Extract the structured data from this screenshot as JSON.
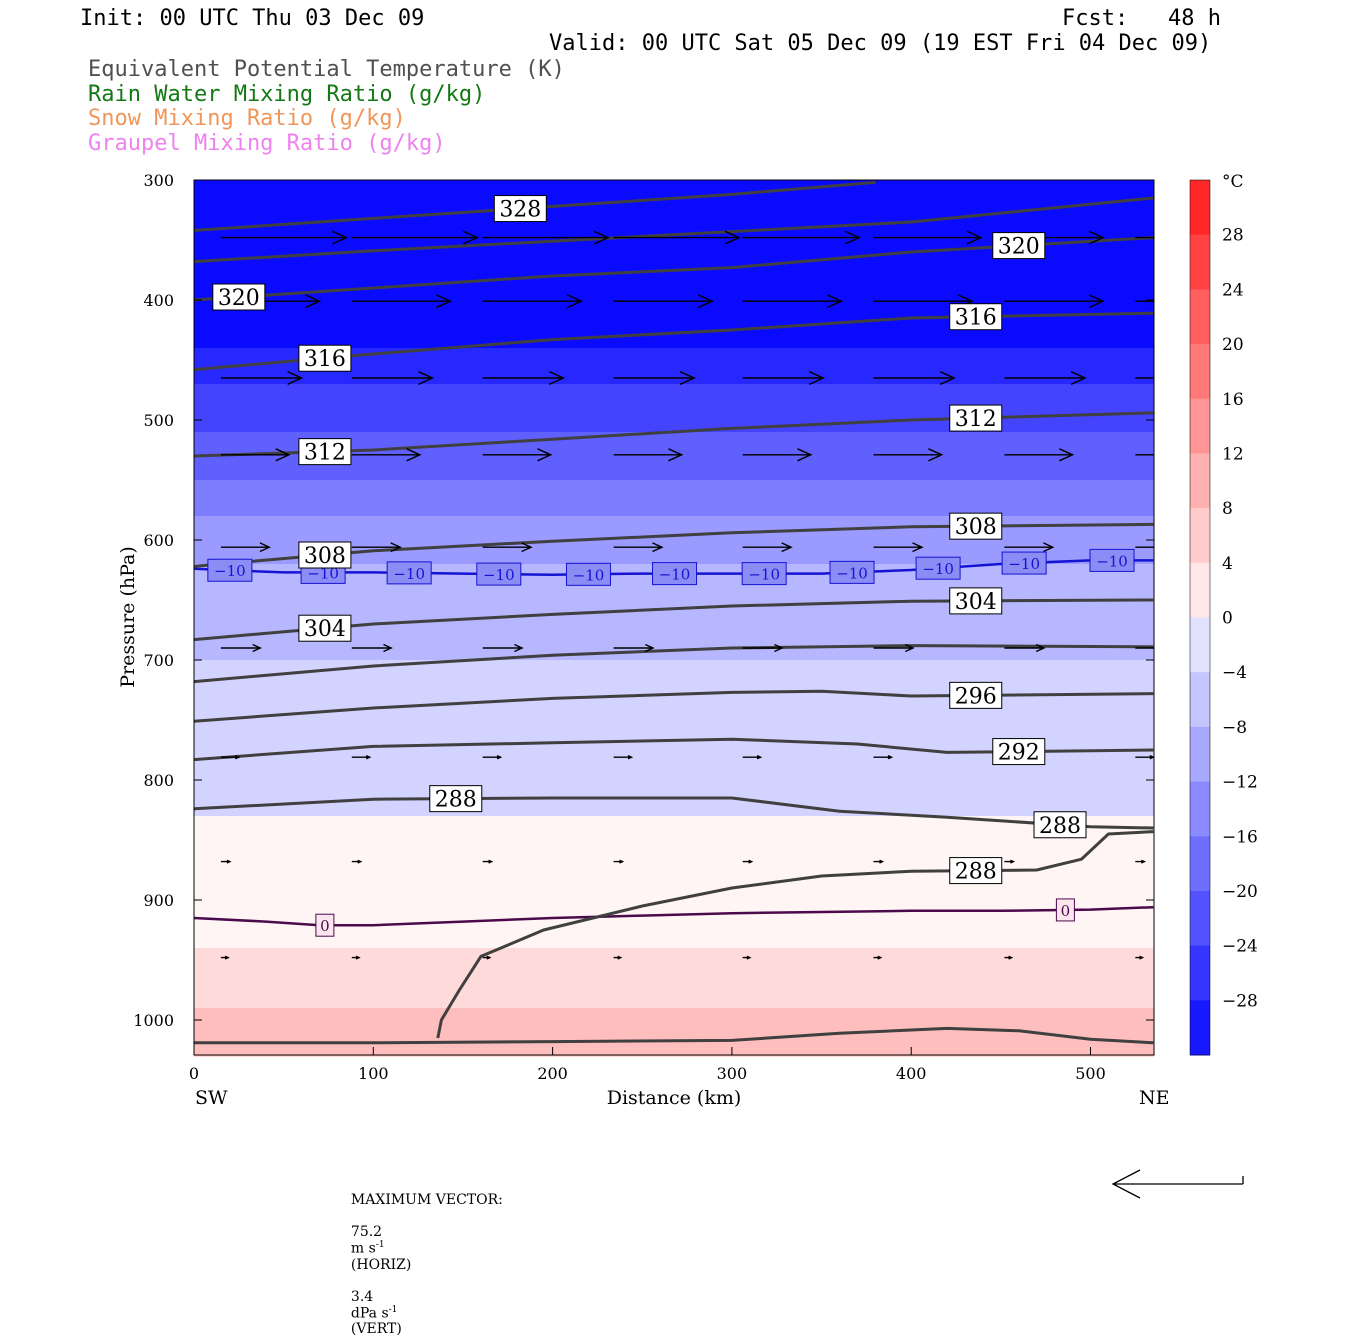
{
  "header": {
    "init": "Init: 00 UTC Thu 03 Dec 09",
    "fcst": "Fcst:   48 h",
    "valid": "Valid: 00 UTC Sat 05 Dec 09 (19 EST Fri 04 Dec 09)"
  },
  "legend": [
    {
      "text": "Equivalent Potential Temperature (K)",
      "color": "#505050"
    },
    {
      "text": "Rain Water Mixing Ratio (g/kg)",
      "color": "#147814"
    },
    {
      "text": "Snow Mixing Ratio (g/kg)",
      "color": "#f0965a"
    },
    {
      "text": "Graupel Mixing Ratio (g/kg)",
      "color": "#ee82ee"
    }
  ],
  "chart_data": {
    "type": "cross-section",
    "xlabel": "Distance (km)",
    "ylabel": "Pressure (hPa)",
    "x_ticks": [
      0,
      100,
      200,
      300,
      400,
      500
    ],
    "xlim": [
      0,
      535
    ],
    "y_ticks": [
      300,
      400,
      500,
      600,
      700,
      800,
      900,
      1000
    ],
    "ylim": [
      300,
      1030
    ],
    "x_end_labels": {
      "left": "SW",
      "right": "NE"
    },
    "colorbar": {
      "unit": "°C",
      "tick_labels": [
        "28",
        "24",
        "20",
        "16",
        "12",
        "8",
        "4",
        "0",
        "−4",
        "−8",
        "−12",
        "−16",
        "−20",
        "−24",
        "−28"
      ],
      "tick_values": [
        28,
        24,
        20,
        16,
        12,
        8,
        4,
        0,
        -4,
        -8,
        -12,
        -16,
        -20,
        -24,
        -28
      ],
      "range": [
        -32,
        32
      ]
    },
    "temperature_isotherms": [
      {
        "value": -10,
        "label": "−10",
        "points": [
          [
            0,
            624
          ],
          [
            50,
            627
          ],
          [
            100,
            627
          ],
          [
            150,
            628
          ],
          [
            200,
            629
          ],
          [
            250,
            628
          ],
          [
            300,
            628
          ],
          [
            350,
            628
          ],
          [
            400,
            625
          ],
          [
            450,
            620
          ],
          [
            500,
            617
          ],
          [
            535,
            617
          ]
        ],
        "label_x": [
          20,
          72,
          120,
          170,
          220,
          268,
          318,
          367,
          415,
          463,
          512
        ]
      },
      {
        "value": 0,
        "label": "0",
        "points": [
          [
            0,
            915
          ],
          [
            40,
            918
          ],
          [
            70,
            921
          ],
          [
            100,
            921
          ],
          [
            150,
            918
          ],
          [
            200,
            915
          ],
          [
            250,
            913
          ],
          [
            300,
            911
          ],
          [
            350,
            910
          ],
          [
            400,
            909
          ],
          [
            450,
            909
          ],
          [
            500,
            908
          ],
          [
            535,
            906
          ]
        ],
        "label_x": [
          73,
          486
        ]
      }
    ],
    "theta_e_contours": [
      {
        "value": 328,
        "points": [
          [
            0,
            342
          ],
          [
            100,
            332
          ],
          [
            200,
            322
          ],
          [
            300,
            312
          ],
          [
            380,
            302
          ]
        ],
        "labels": [
          {
            "x": 182,
            "text": "328"
          }
        ]
      },
      {
        "value": 324,
        "points": [
          [
            0,
            368
          ],
          [
            100,
            359
          ],
          [
            200,
            351
          ],
          [
            300,
            343
          ],
          [
            400,
            335
          ],
          [
            535,
            315
          ]
        ],
        "labels": []
      },
      {
        "value": 320,
        "points": [
          [
            0,
            400
          ],
          [
            100,
            390
          ],
          [
            200,
            380
          ],
          [
            300,
            373
          ],
          [
            400,
            360
          ],
          [
            535,
            348
          ]
        ],
        "labels": [
          {
            "x": 25,
            "text": "320"
          },
          {
            "x": 460,
            "text": "320"
          }
        ]
      },
      {
        "value": 316,
        "points": [
          [
            0,
            458
          ],
          [
            100,
            445
          ],
          [
            200,
            433
          ],
          [
            300,
            425
          ],
          [
            400,
            415
          ],
          [
            535,
            411
          ]
        ],
        "labels": [
          {
            "x": 73,
            "text": "316"
          },
          {
            "x": 436,
            "text": "316"
          }
        ]
      },
      {
        "value": 312,
        "points": [
          [
            0,
            530
          ],
          [
            100,
            525
          ],
          [
            200,
            516
          ],
          [
            300,
            507
          ],
          [
            400,
            500
          ],
          [
            535,
            494
          ]
        ],
        "labels": [
          {
            "x": 73,
            "text": "312"
          },
          {
            "x": 436,
            "text": "312"
          }
        ]
      },
      {
        "value": 308,
        "points": [
          [
            0,
            622
          ],
          [
            100,
            609
          ],
          [
            200,
            601
          ],
          [
            300,
            594
          ],
          [
            400,
            589
          ],
          [
            535,
            587
          ]
        ],
        "labels": [
          {
            "x": 73,
            "text": "308"
          },
          {
            "x": 436,
            "text": "308"
          }
        ]
      },
      {
        "value": 304,
        "points": [
          [
            0,
            683
          ],
          [
            100,
            670
          ],
          [
            200,
            662
          ],
          [
            300,
            655
          ],
          [
            400,
            651
          ],
          [
            535,
            650
          ]
        ],
        "labels": [
          {
            "x": 73,
            "text": "304"
          },
          {
            "x": 436,
            "text": "304"
          }
        ]
      },
      {
        "value": 300,
        "points": [
          [
            0,
            718
          ],
          [
            100,
            705
          ],
          [
            200,
            696
          ],
          [
            300,
            690
          ],
          [
            400,
            688
          ],
          [
            535,
            689
          ]
        ],
        "labels": []
      },
      {
        "value": 296,
        "points": [
          [
            0,
            751
          ],
          [
            100,
            740
          ],
          [
            200,
            732
          ],
          [
            300,
            727
          ],
          [
            350,
            726
          ],
          [
            400,
            730
          ],
          [
            535,
            728
          ]
        ],
        "labels": [
          {
            "x": 436,
            "text": "296"
          }
        ]
      },
      {
        "value": 292,
        "points": [
          [
            0,
            783
          ],
          [
            100,
            772
          ],
          [
            200,
            769
          ],
          [
            300,
            766
          ],
          [
            370,
            770
          ],
          [
            420,
            777
          ],
          [
            535,
            775
          ]
        ],
        "labels": [
          {
            "x": 460,
            "text": "292"
          }
        ]
      },
      {
        "value": 288,
        "points": [
          [
            0,
            824
          ],
          [
            100,
            816
          ],
          [
            200,
            815
          ],
          [
            300,
            815
          ],
          [
            360,
            826
          ],
          [
            420,
            831
          ],
          [
            500,
            839
          ],
          [
            535,
            840
          ]
        ],
        "labels": [
          {
            "x": 146,
            "text": "288"
          },
          {
            "x": 483,
            "text": "288"
          }
        ]
      },
      {
        "value": 288,
        "points": [
          [
            136,
            1015
          ],
          [
            138,
            1000
          ],
          [
            148,
            975
          ],
          [
            160,
            947
          ],
          [
            195,
            925
          ],
          [
            250,
            905
          ],
          [
            300,
            890
          ],
          [
            350,
            880
          ],
          [
            400,
            876
          ],
          [
            470,
            875
          ],
          [
            495,
            866
          ],
          [
            510,
            845
          ],
          [
            535,
            843
          ]
        ],
        "labels": [
          {
            "x": 436,
            "text": "288"
          }
        ]
      },
      {
        "value": 284,
        "points": [
          [
            0,
            1019
          ],
          [
            100,
            1019
          ],
          [
            200,
            1018
          ],
          [
            300,
            1017
          ],
          [
            360,
            1011
          ],
          [
            420,
            1007
          ],
          [
            460,
            1009
          ],
          [
            500,
            1016
          ],
          [
            535,
            1019
          ]
        ],
        "labels": []
      }
    ],
    "wind_vectors": {
      "levels": [
        {
          "p": 348,
          "dx": [
            70,
            70,
            70,
            70,
            65,
            60,
            55,
            50
          ]
        },
        {
          "p": 401,
          "dx": [
            55,
            55,
            55,
            55,
            55,
            55,
            55,
            55
          ]
        },
        {
          "p": 465,
          "dx": [
            45,
            45,
            45,
            45,
            45,
            45,
            45,
            45
          ]
        },
        {
          "p": 529,
          "dx": [
            38,
            38,
            38,
            38,
            38,
            38,
            38,
            38
          ]
        },
        {
          "p": 606,
          "dx": [
            27,
            27,
            27,
            27,
            27,
            27,
            27,
            27
          ]
        },
        {
          "p": 690,
          "dx": [
            22,
            22,
            22,
            22,
            22,
            22,
            22,
            22
          ]
        },
        {
          "p": 781,
          "dx": [
            10,
            10,
            10,
            10,
            10,
            10,
            10,
            10
          ]
        },
        {
          "p": 868,
          "dx": [
            5,
            5,
            5,
            5,
            5,
            5,
            5,
            5
          ]
        },
        {
          "p": 948,
          "dx": [
            4,
            4,
            4,
            4,
            4,
            4,
            4,
            4
          ]
        }
      ],
      "x": [
        15,
        88,
        161,
        234,
        306,
        379,
        452,
        525
      ]
    },
    "max_vector": {
      "label": "MAXIMUM VECTOR:",
      "horiz_value": "75.2",
      "horiz_unit": "m s",
      "horiz_exp": "-1",
      "horiz_tag": "(HORIZ)",
      "vert_value": "3.4",
      "vert_unit": "dPa s",
      "vert_exp": "-1",
      "vert_tag": "(VERT)"
    }
  }
}
